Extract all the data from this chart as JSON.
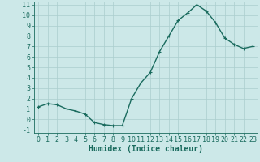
{
  "x": [
    0,
    1,
    2,
    3,
    4,
    5,
    6,
    7,
    8,
    9,
    10,
    11,
    12,
    13,
    14,
    15,
    16,
    17,
    18,
    19,
    20,
    21,
    22,
    23
  ],
  "y": [
    1.2,
    1.5,
    1.4,
    1.0,
    0.8,
    0.5,
    -0.3,
    -0.5,
    -0.6,
    -0.6,
    2.0,
    3.5,
    4.5,
    6.5,
    8.0,
    9.5,
    10.2,
    11.0,
    10.4,
    9.3,
    7.8,
    7.2,
    6.8,
    7.0
  ],
  "xlabel": "Humidex (Indice chaleur)",
  "ylim": [
    -1.3,
    11.3
  ],
  "xlim": [
    -0.5,
    23.5
  ],
  "yticks": [
    -1,
    0,
    1,
    2,
    3,
    4,
    5,
    6,
    7,
    8,
    9,
    10,
    11
  ],
  "xticks": [
    0,
    1,
    2,
    3,
    4,
    5,
    6,
    7,
    8,
    9,
    10,
    11,
    12,
    13,
    14,
    15,
    16,
    17,
    18,
    19,
    20,
    21,
    22,
    23
  ],
  "line_color": "#1a6b5e",
  "marker_color": "#1a6b5e",
  "bg_color": "#cce8e8",
  "grid_color": "#aacece",
  "axis_color": "#1a6b5e",
  "xlabel_fontsize": 7,
  "tick_fontsize": 6,
  "line_width": 1.0,
  "marker_size": 3.0
}
